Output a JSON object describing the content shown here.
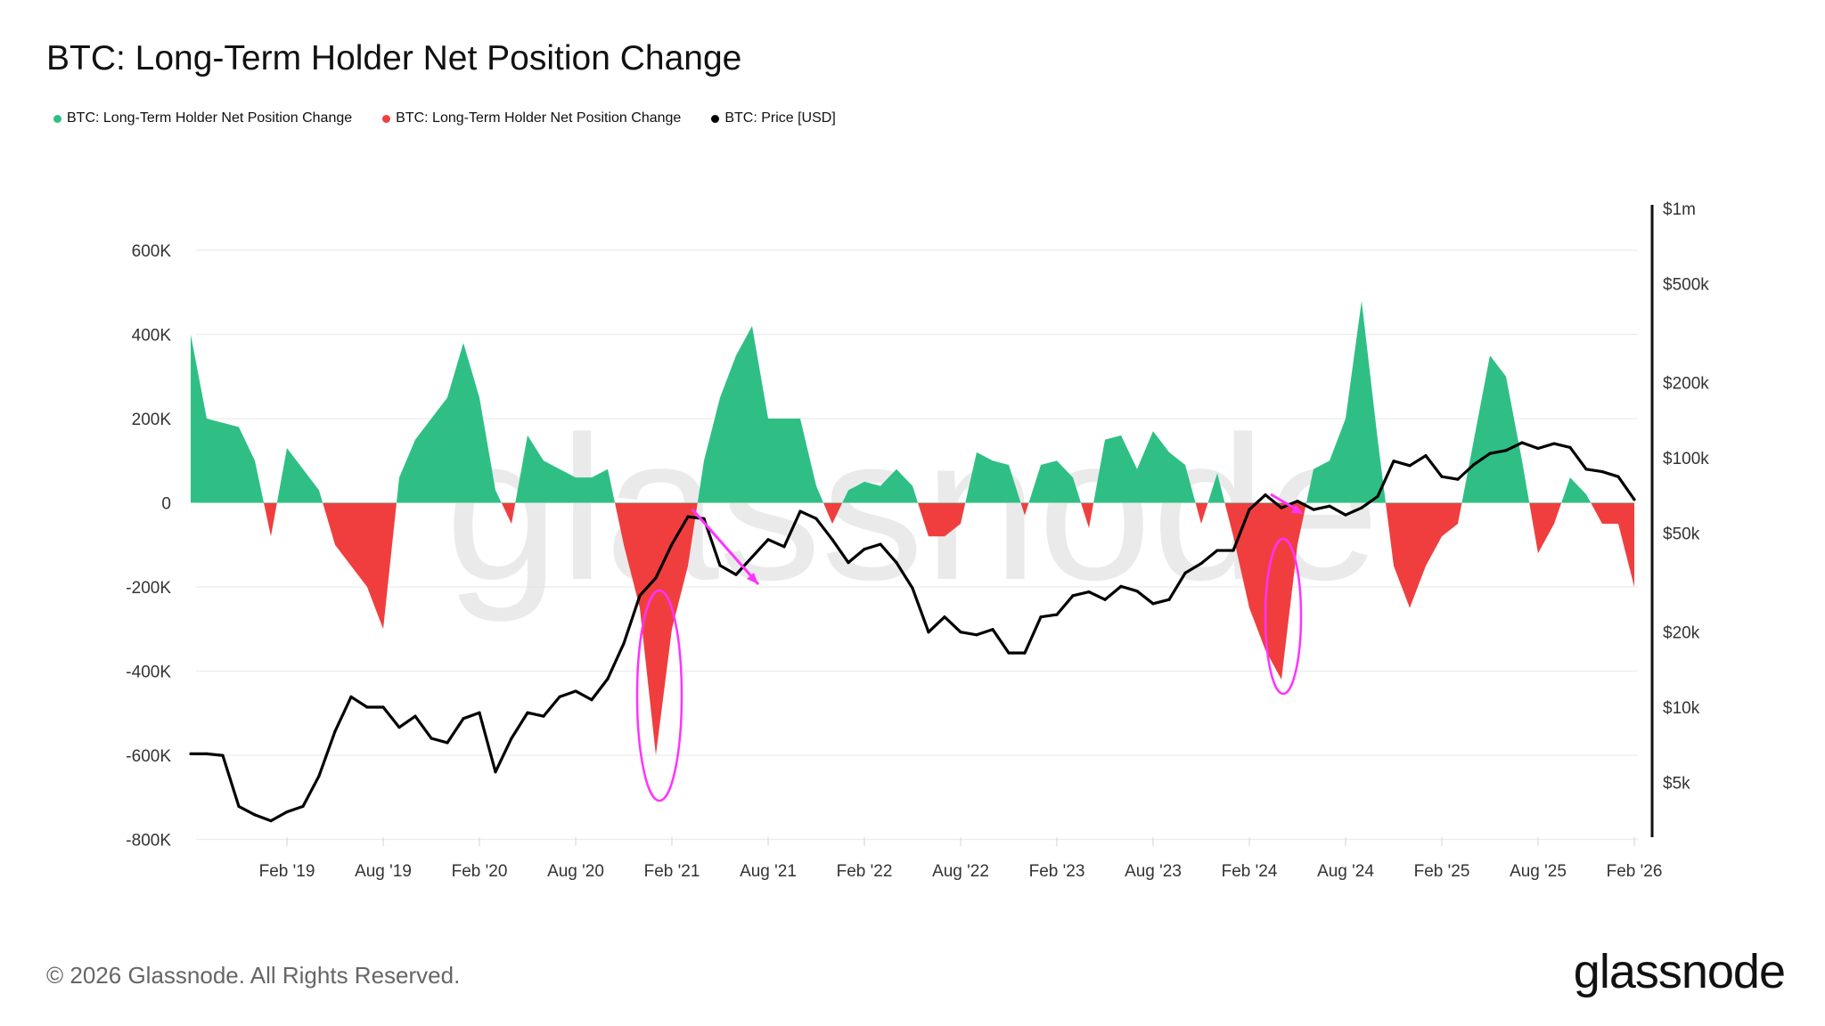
{
  "title": "BTC: Long-Term Holder Net Position Change",
  "legend": [
    {
      "label": "BTC: Long-Term Holder Net Position Change",
      "color": "#2fbf85"
    },
    {
      "label": "BTC: Long-Term Holder Net Position Change",
      "color": "#f03e3e"
    },
    {
      "label": "BTC: Price [USD]",
      "color": "#000000"
    }
  ],
  "footer": {
    "copyright": "© 2026 Glassnode. All Rights Reserved.",
    "logo": "glassnode",
    "watermark": "glassnode"
  },
  "chart_data": {
    "type": "area",
    "title": "BTC: Long-Term Holder Net Position Change",
    "y_left": {
      "ticks": [
        "600K",
        "400K",
        "200K",
        "0",
        "-200K",
        "-400K",
        "-600K",
        "-800K"
      ],
      "tick_values": [
        600000,
        400000,
        200000,
        0,
        -200000,
        -400000,
        -600000,
        -800000
      ],
      "range": [
        -800000,
        650000
      ]
    },
    "y_right": {
      "scale": "log",
      "ticks": [
        "$1m",
        "$500k",
        "$200k",
        "$100k",
        "$50k",
        "$20k",
        "$10k",
        "$5k"
      ],
      "tick_values": [
        1000000,
        500000,
        200000,
        100000,
        50000,
        20000,
        10000,
        5000
      ]
    },
    "x_ticks": [
      "Feb '19",
      "Aug '19",
      "Feb '20",
      "Aug '20",
      "Feb '21",
      "Aug '21",
      "Feb '22",
      "Aug '22",
      "Feb '23",
      "Aug '23",
      "Feb '24",
      "Aug '24",
      "Feb '25",
      "Aug '25",
      "Feb '26"
    ],
    "grid": true,
    "legend_position": "top-left",
    "colors": {
      "positive": "#2fbf85",
      "negative": "#f03e3e",
      "price": "#000000",
      "annotation": "#ff33ff"
    },
    "x": [
      "2018-08",
      "2018-09",
      "2018-10",
      "2018-11",
      "2018-12",
      "2019-01",
      "2019-02",
      "2019-03",
      "2019-04",
      "2019-05",
      "2019-06",
      "2019-07",
      "2019-08",
      "2019-09",
      "2019-10",
      "2019-11",
      "2019-12",
      "2020-01",
      "2020-02",
      "2020-03",
      "2020-04",
      "2020-05",
      "2020-06",
      "2020-07",
      "2020-08",
      "2020-09",
      "2020-10",
      "2020-11",
      "2020-12",
      "2021-01",
      "2021-02",
      "2021-03",
      "2021-04",
      "2021-05",
      "2021-06",
      "2021-07",
      "2021-08",
      "2021-09",
      "2021-10",
      "2021-11",
      "2021-12",
      "2022-01",
      "2022-02",
      "2022-03",
      "2022-04",
      "2022-05",
      "2022-06",
      "2022-07",
      "2022-08",
      "2022-09",
      "2022-10",
      "2022-11",
      "2022-12",
      "2023-01",
      "2023-02",
      "2023-03",
      "2023-04",
      "2023-05",
      "2023-06",
      "2023-07",
      "2023-08",
      "2023-09",
      "2023-10",
      "2023-11",
      "2023-12",
      "2024-01",
      "2024-02",
      "2024-03",
      "2024-04",
      "2024-05",
      "2024-06",
      "2024-07",
      "2024-08",
      "2024-09",
      "2024-10",
      "2024-11",
      "2024-12",
      "2025-01",
      "2025-02",
      "2025-03",
      "2025-04",
      "2025-05",
      "2025-06",
      "2025-07",
      "2025-08",
      "2025-09",
      "2025-10",
      "2025-11",
      "2025-12",
      "2026-01",
      "2026-02"
    ],
    "series": [
      {
        "name": "BTC: Long-Term Holder Net Position Change",
        "axis": "left",
        "values": [
          400000,
          200000,
          190000,
          180000,
          100000,
          -80000,
          130000,
          80000,
          30000,
          -100000,
          -150000,
          -200000,
          -300000,
          60000,
          150000,
          200000,
          250000,
          380000,
          250000,
          30000,
          -50000,
          160000,
          100000,
          80000,
          60000,
          60000,
          80000,
          -100000,
          -250000,
          -600000,
          -300000,
          -150000,
          100000,
          250000,
          350000,
          420000,
          200000,
          200000,
          200000,
          40000,
          -50000,
          30000,
          50000,
          40000,
          80000,
          40000,
          -80000,
          -80000,
          -50000,
          120000,
          100000,
          90000,
          -30000,
          90000,
          100000,
          60000,
          -60000,
          150000,
          160000,
          80000,
          170000,
          120000,
          90000,
          -50000,
          70000,
          -80000,
          -250000,
          -350000,
          -420000,
          -100000,
          80000,
          100000,
          200000,
          480000,
          150000,
          -150000,
          -250000,
          -150000,
          -80000,
          -50000,
          150000,
          350000,
          300000,
          100000,
          -120000,
          -50000,
          60000,
          20000,
          -50000,
          -50000,
          -200000
        ]
      },
      {
        "name": "BTC: Price [USD]",
        "axis": "right",
        "values": [
          6500,
          6500,
          6400,
          4000,
          3700,
          3500,
          3800,
          4000,
          5300,
          8000,
          11000,
          10000,
          10000,
          8300,
          9200,
          7500,
          7200,
          9000,
          9500,
          5500,
          7500,
          9500,
          9200,
          11000,
          11600,
          10700,
          13000,
          18000,
          28000,
          33000,
          45000,
          58000,
          57000,
          37000,
          34000,
          40000,
          47000,
          44000,
          61000,
          57000,
          47000,
          38000,
          43000,
          45000,
          38000,
          30000,
          20000,
          23000,
          20000,
          19500,
          20500,
          16500,
          16500,
          23000,
          23500,
          28000,
          29000,
          27000,
          30500,
          29200,
          26000,
          27000,
          34500,
          37700,
          42500,
          42500,
          62000,
          71000,
          63000,
          67000,
          62000,
          64000,
          59000,
          63000,
          70000,
          97000,
          93000,
          102000,
          84000,
          82000,
          94000,
          104000,
          107000,
          115000,
          109000,
          114000,
          110000,
          90000,
          88000,
          84000,
          68000
        ]
      }
    ],
    "annotations": [
      {
        "type": "ellipse",
        "around": "2021-01"
      },
      {
        "type": "arrow",
        "from": "2021-03",
        "to": "2021-07"
      },
      {
        "type": "ellipse",
        "around": "2024-04"
      },
      {
        "type": "arrow",
        "from": "2024-03",
        "to": "2024-05"
      }
    ]
  }
}
